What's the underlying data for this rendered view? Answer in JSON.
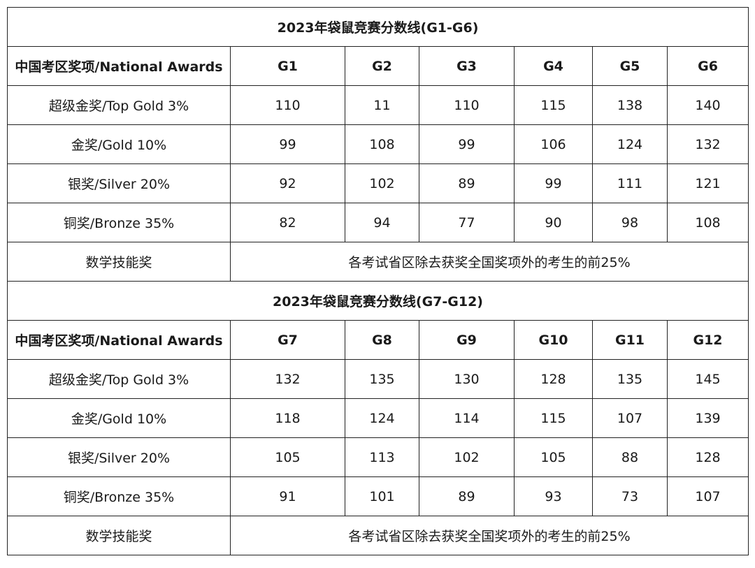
{
  "tables": [
    {
      "title": "2023年袋鼠竞赛分数线(G1-G6)",
      "header_label": "中国考区奖项/National Awards",
      "grades": [
        "G1",
        "G2",
        "G3",
        "G4",
        "G5",
        "G6"
      ],
      "rows": [
        {
          "label": "超级金奖/Top Gold 3%",
          "values": [
            "110",
            "11",
            "110",
            "115",
            "138",
            "140"
          ]
        },
        {
          "label": "金奖/Gold 10%",
          "values": [
            "99",
            "108",
            "99",
            "106",
            "124",
            "132"
          ]
        },
        {
          "label": "银奖/Silver 20%",
          "values": [
            "92",
            "102",
            "89",
            "99",
            "111",
            "121"
          ]
        },
        {
          "label": "铜奖/Bronze 35%",
          "values": [
            "82",
            "94",
            "77",
            "90",
            "98",
            "108"
          ]
        }
      ],
      "skill_row": {
        "label": "数学技能奖",
        "note": "各考试省区除去获奖全国奖项外的考生的前25%"
      }
    },
    {
      "title": "2023年袋鼠竞赛分数线(G7-G12)",
      "header_label": "中国考区奖项/National Awards",
      "grades": [
        "G7",
        "G8",
        "G9",
        "G10",
        "G11",
        "G12"
      ],
      "rows": [
        {
          "label": "超级金奖/Top Gold 3%",
          "values": [
            "132",
            "135",
            "130",
            "128",
            "135",
            "145"
          ]
        },
        {
          "label": "金奖/Gold 10%",
          "values": [
            "118",
            "124",
            "114",
            "115",
            "107",
            "139"
          ]
        },
        {
          "label": "银奖/Silver 20%",
          "values": [
            "105",
            "113",
            "102",
            "105",
            "88",
            "128"
          ]
        },
        {
          "label": "铜奖/Bronze 35%",
          "values": [
            "91",
            "101",
            "89",
            "93",
            "73",
            "107"
          ]
        }
      ],
      "skill_row": {
        "label": "数学技能奖",
        "note": "各考试省区除去获奖全国奖项外的考生的前25%"
      }
    }
  ]
}
